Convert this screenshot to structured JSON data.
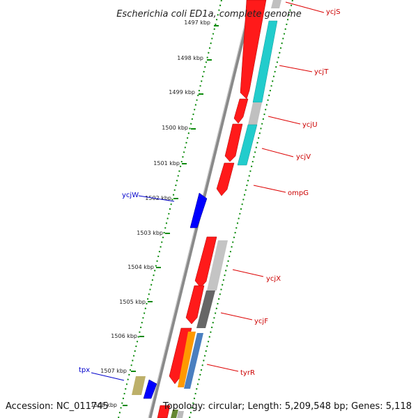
{
  "title": "Escherichia coli ED1a, complete genome",
  "footer": {
    "accession": "Accession: NC_011745",
    "topology": "Topology: circular; Length: 5,209,548 bp; Genes: 5,118"
  },
  "colors": {
    "cds_forward": "#ff0000",
    "cyan_track": "#00cccc",
    "light_gray_track": "#bbbbbb",
    "dark_gray_track": "#666666",
    "orange_track": "#ff9900",
    "steelblue_track": "#4477bb",
    "khaki_track": "#bbaa66",
    "blue_reverse": "#0000ff",
    "label_red": "#cc0000",
    "label_blue": "#0000cc",
    "tick_green": "#008800",
    "backbone": "#888888"
  },
  "ticks": [
    {
      "label": "1497 kbp"
    },
    {
      "label": "1498 kbp"
    },
    {
      "label": "1499 kbp"
    },
    {
      "label": "1500 kbp"
    },
    {
      "label": "1501 kbp"
    },
    {
      "label": "1502 kbp"
    },
    {
      "label": "1503 kbp"
    },
    {
      "label": "1504 kbp"
    },
    {
      "label": "1505 kbp"
    },
    {
      "label": "1506 kbp"
    },
    {
      "label": "1507 kbp"
    },
    {
      "label": "1508 kbp"
    }
  ],
  "gene_labels": {
    "ycjS": "ycjS",
    "ycjT": "ycjT",
    "ycjU": "ycjU",
    "ycjV": "ycjV",
    "ompG": "ompG",
    "ycjW": "ycjW",
    "ycjX": "ycjX",
    "ycjF": "ycjF",
    "tyrR": "tyrR",
    "tpx": "tpx"
  }
}
